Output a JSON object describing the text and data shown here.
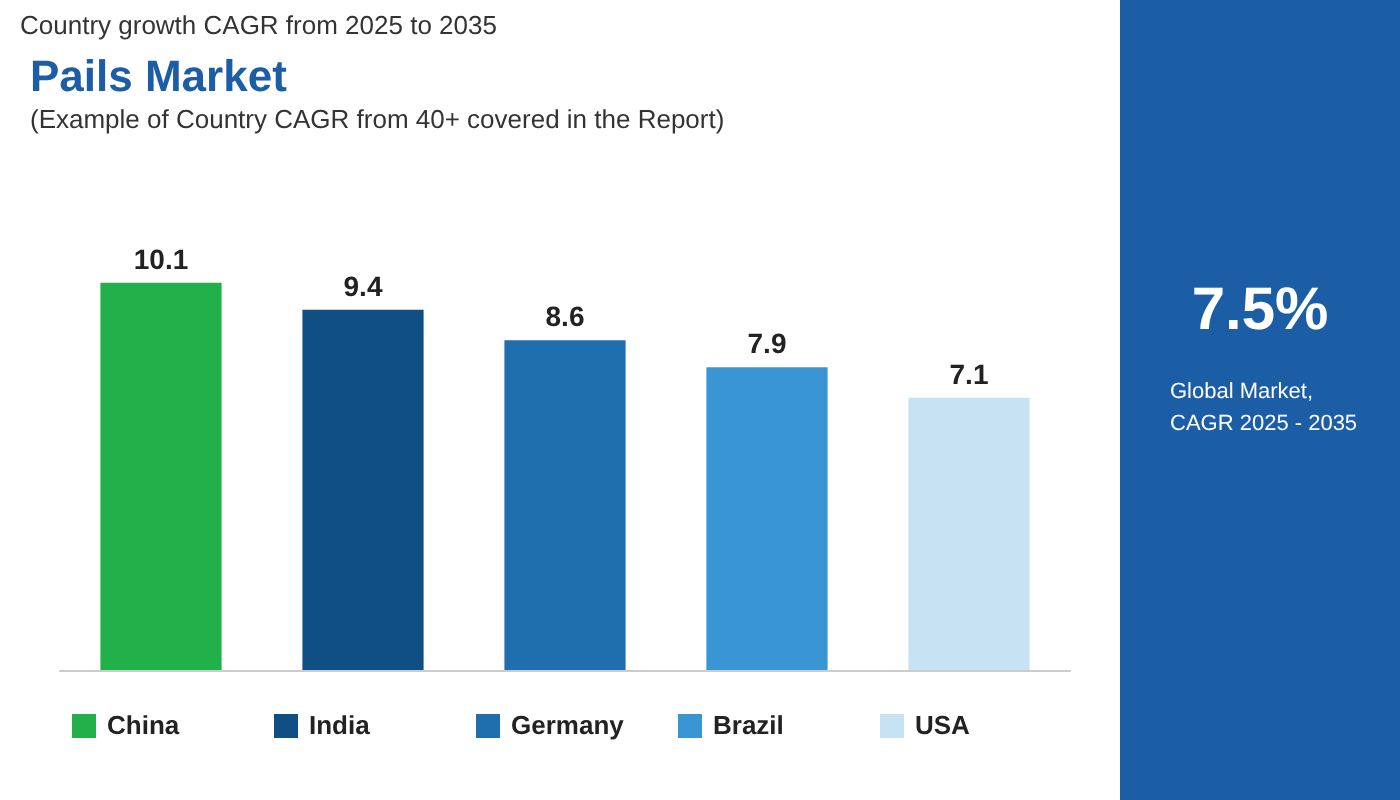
{
  "chart_data": {
    "type": "bar",
    "title": "Pails Market",
    "subtitle": "(Example of Country CAGR from 40+ covered in the Report)",
    "annotations": [
      "Country growth CAGR from 2025 to 2035",
      "7.5%",
      "Global Market,\nCAGR 2025 - 2035"
    ],
    "categories": [
      "China",
      "India",
      "Germany",
      "Brazil",
      "USA"
    ],
    "values": [
      10.1,
      9.4,
      8.6,
      7.9,
      7.1
    ],
    "colors": [
      "#22b04b",
      "#0f4f84",
      "#1f6fae",
      "#3a95d4",
      "#c6e2f3"
    ],
    "data_labels": true,
    "tick_labels": "x",
    "grid": false
  }
}
